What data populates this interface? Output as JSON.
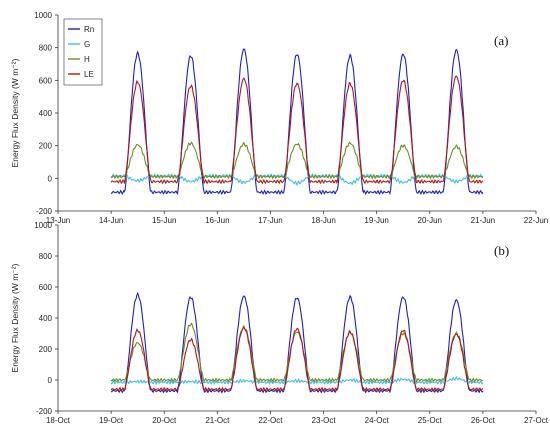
{
  "chart_data": [
    {
      "type": "line",
      "panel_label": "(a)",
      "ylabel": "Energy Flux Density (W m⁻²)",
      "ylim": [
        -200,
        1000
      ],
      "yticks": [
        -200,
        0,
        200,
        400,
        600,
        800,
        1000
      ],
      "x_start": "13-Jun",
      "xticks": [
        "13-Jun",
        "14-Jun",
        "15-Jun",
        "16-Jun",
        "17-Jun",
        "18-Jun",
        "19-Jun",
        "20-Jun",
        "21-Jun",
        "22-Jun"
      ],
      "data_range_days": [
        1.0,
        8.0
      ],
      "legend": {
        "placement": "top-left",
        "entries": [
          "Rn",
          "G",
          "H",
          "LE"
        ]
      },
      "series": [
        {
          "name": "Rn",
          "color": "#1f1fbf",
          "night": -85,
          "daily_peaks": [
            765,
            750,
            790,
            760,
            750,
            760,
            785
          ]
        },
        {
          "name": "G",
          "color": "#3fbfdf",
          "night": 15,
          "daily_peaks": [
            -15,
            -20,
            -25,
            -30,
            -30,
            -25,
            -20
          ]
        },
        {
          "name": "H",
          "color": "#6b8e23",
          "night": 10,
          "daily_peaks": [
            205,
            215,
            210,
            210,
            215,
            200,
            195
          ]
        },
        {
          "name": "LE",
          "color": "#b01818",
          "night": -20,
          "daily_peaks": [
            590,
            565,
            610,
            580,
            580,
            600,
            625
          ]
        }
      ]
    },
    {
      "type": "line",
      "panel_label": "(b)",
      "ylabel": "Energy Flux Density (W m⁻²)",
      "ylim": [
        -200,
        1000
      ],
      "yticks": [
        -200,
        0,
        200,
        400,
        600,
        800,
        1000
      ],
      "x_start": "18-Oct",
      "xticks": [
        "18-Oct",
        "19-Oct",
        "20-Oct",
        "21-Oct",
        "22-Oct",
        "23-Oct",
        "24-Oct",
        "25-Oct",
        "26-Oct",
        "27-Oct"
      ],
      "data_range_days": [
        1.0,
        8.0
      ],
      "legend": null,
      "series": [
        {
          "name": "Rn",
          "color": "#1f1fbf",
          "night": -70,
          "daily_peaks": [
            550,
            535,
            540,
            530,
            535,
            535,
            515
          ]
        },
        {
          "name": "G",
          "color": "#3fbfdf",
          "night": -15,
          "daily_peaks": [
            -10,
            -10,
            -5,
            -5,
            0,
            5,
            10
          ]
        },
        {
          "name": "H",
          "color": "#6b8e23",
          "night": 0,
          "daily_peaks": [
            240,
            360,
            340,
            310,
            305,
            300,
            300
          ]
        },
        {
          "name": "LE",
          "color": "#b01818",
          "night": -60,
          "daily_peaks": [
            320,
            260,
            335,
            330,
            310,
            320,
            295
          ]
        }
      ]
    }
  ]
}
